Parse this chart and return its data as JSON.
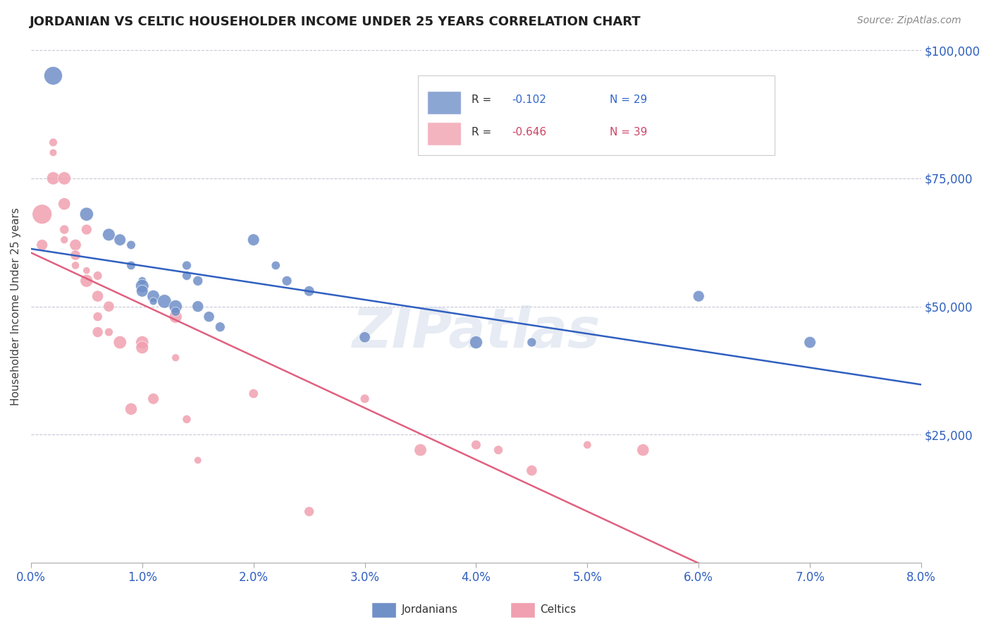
{
  "title": "JORDANIAN VS CELTIC HOUSEHOLDER INCOME UNDER 25 YEARS CORRELATION CHART",
  "source": "Source: ZipAtlas.com",
  "ylabel": "Householder Income Under 25 years",
  "xlim": [
    0.0,
    0.08
  ],
  "ylim": [
    0,
    100000
  ],
  "ytick_labels": [
    "",
    "$25,000",
    "$50,000",
    "$75,000",
    "$100,000"
  ],
  "ytick_vals": [
    0,
    25000,
    50000,
    75000,
    100000
  ],
  "xtick_labels": [
    "0.0%",
    "1.0%",
    "2.0%",
    "3.0%",
    "4.0%",
    "5.0%",
    "6.0%",
    "7.0%",
    "8.0%"
  ],
  "xticks": [
    0.0,
    0.01,
    0.02,
    0.03,
    0.04,
    0.05,
    0.06,
    0.07,
    0.08
  ],
  "jordanian_R": "-0.102",
  "jordanian_N": "29",
  "celtic_R": "-0.646",
  "celtic_N": "39",
  "blue_color": "#7090c8",
  "pink_color": "#f0a0b0",
  "line_blue": "#3060c0",
  "line_pink": "#e06080",
  "legend_blue_text": "#3366cc",
  "legend_pink_text": "#cc4466",
  "title_color": "#202020",
  "axis_label_color": "#3060c0",
  "background_color": "#ffffff",
  "grid_color": "#c8c8d8",
  "watermark": "ZIPatlas",
  "jordanian_points": [
    [
      0.002,
      95000
    ],
    [
      0.005,
      68000
    ],
    [
      0.007,
      64000
    ],
    [
      0.008,
      63000
    ],
    [
      0.009,
      62000
    ],
    [
      0.009,
      58000
    ],
    [
      0.01,
      55000
    ],
    [
      0.01,
      54000
    ],
    [
      0.01,
      53000
    ],
    [
      0.011,
      52000
    ],
    [
      0.011,
      51000
    ],
    [
      0.012,
      51000
    ],
    [
      0.013,
      50000
    ],
    [
      0.013,
      49000
    ],
    [
      0.014,
      58000
    ],
    [
      0.014,
      56000
    ],
    [
      0.015,
      55000
    ],
    [
      0.015,
      50000
    ],
    [
      0.016,
      48000
    ],
    [
      0.017,
      46000
    ],
    [
      0.02,
      63000
    ],
    [
      0.022,
      58000
    ],
    [
      0.023,
      55000
    ],
    [
      0.025,
      53000
    ],
    [
      0.03,
      44000
    ],
    [
      0.04,
      43000
    ],
    [
      0.045,
      43000
    ],
    [
      0.06,
      52000
    ],
    [
      0.07,
      43000
    ]
  ],
  "celtic_points": [
    [
      0.001,
      68000
    ],
    [
      0.001,
      62000
    ],
    [
      0.002,
      82000
    ],
    [
      0.002,
      80000
    ],
    [
      0.002,
      75000
    ],
    [
      0.003,
      75000
    ],
    [
      0.003,
      70000
    ],
    [
      0.003,
      65000
    ],
    [
      0.003,
      63000
    ],
    [
      0.004,
      62000
    ],
    [
      0.004,
      60000
    ],
    [
      0.004,
      58000
    ],
    [
      0.005,
      65000
    ],
    [
      0.005,
      57000
    ],
    [
      0.005,
      55000
    ],
    [
      0.006,
      56000
    ],
    [
      0.006,
      52000
    ],
    [
      0.006,
      48000
    ],
    [
      0.006,
      45000
    ],
    [
      0.007,
      50000
    ],
    [
      0.007,
      45000
    ],
    [
      0.008,
      43000
    ],
    [
      0.009,
      30000
    ],
    [
      0.01,
      43000
    ],
    [
      0.01,
      42000
    ],
    [
      0.011,
      32000
    ],
    [
      0.013,
      48000
    ],
    [
      0.013,
      40000
    ],
    [
      0.014,
      28000
    ],
    [
      0.015,
      20000
    ],
    [
      0.02,
      33000
    ],
    [
      0.025,
      10000
    ],
    [
      0.03,
      32000
    ],
    [
      0.035,
      22000
    ],
    [
      0.04,
      23000
    ],
    [
      0.042,
      22000
    ],
    [
      0.045,
      18000
    ],
    [
      0.05,
      23000
    ],
    [
      0.055,
      22000
    ]
  ]
}
